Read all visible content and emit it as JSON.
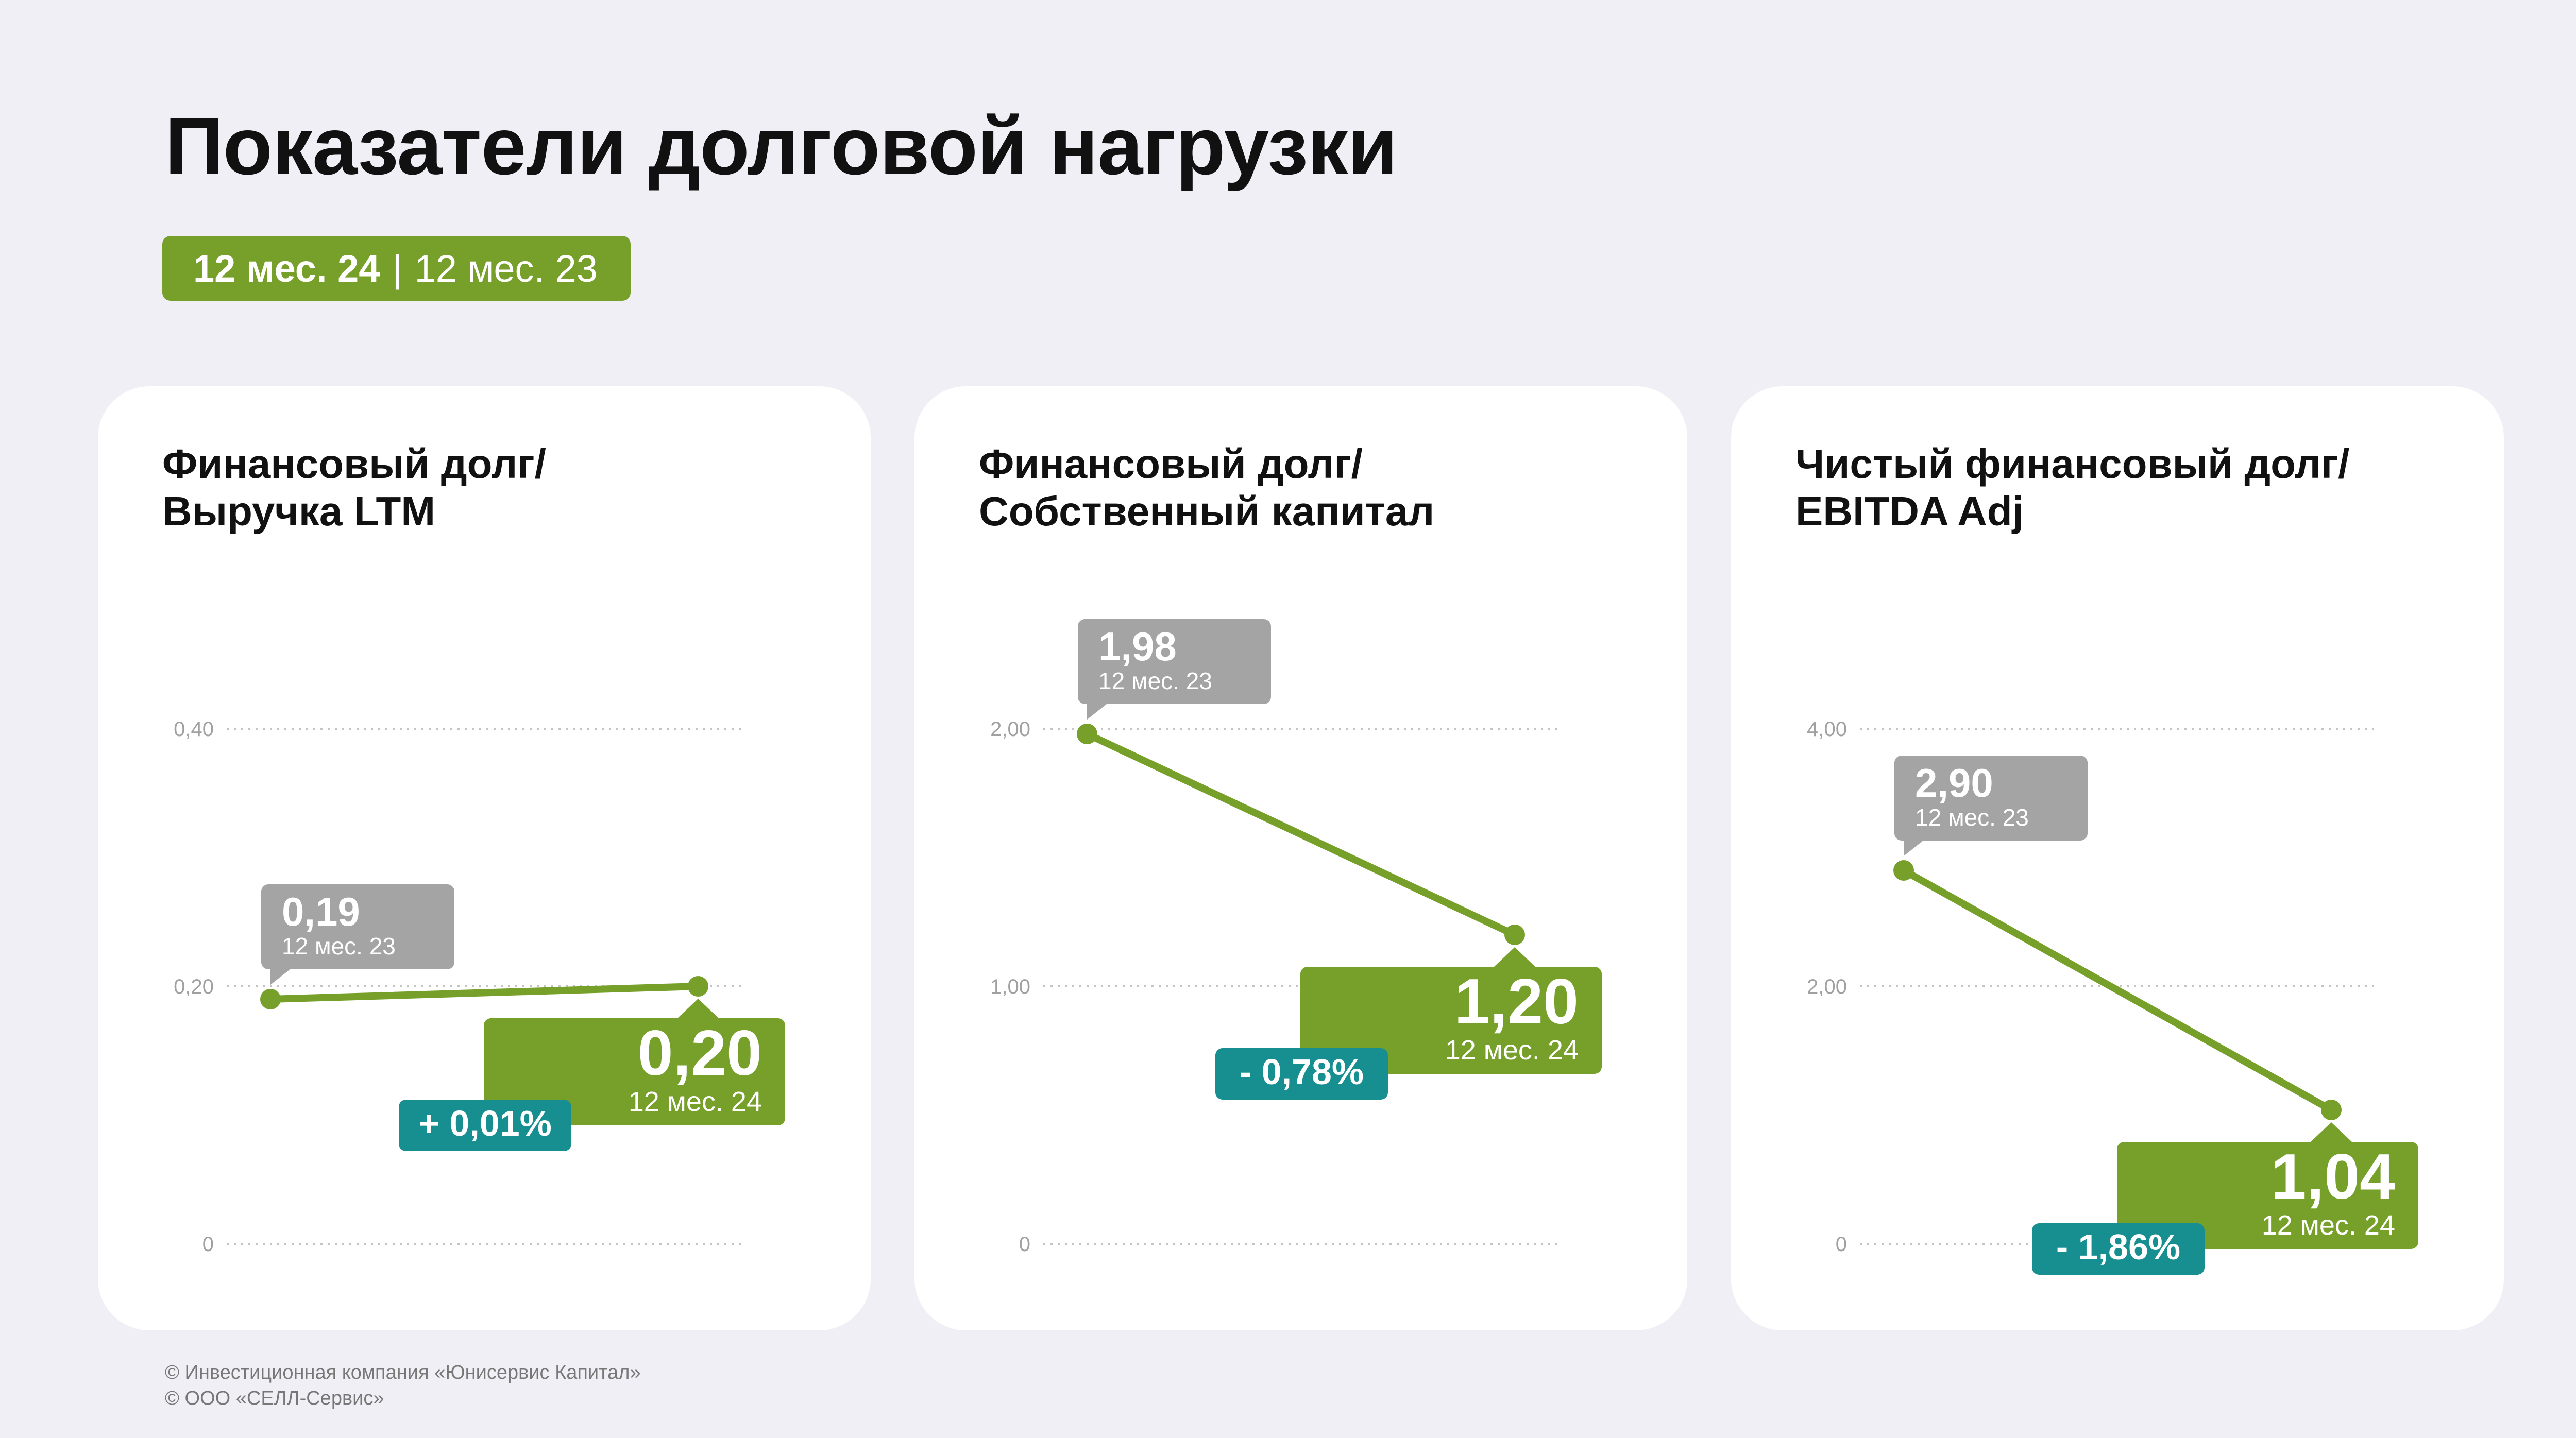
{
  "header": {
    "title": "Показатели долговой нагрузки",
    "period_current": "12 мес. 24",
    "period_separator": "|",
    "period_previous": "12 мес. 23"
  },
  "colors": {
    "current": "#77a02a",
    "previous": "#a4a4a4",
    "change": "#178f90",
    "grid": "#c4c4c4",
    "axis_text": "#a0a0a0"
  },
  "chart_data": [
    {
      "type": "line",
      "title_line1": "Финансовый долг/",
      "title_line2": "Выручка LTM",
      "yticks": [
        "0",
        "0,20",
        "0,40"
      ],
      "ylim": [
        0,
        0.4
      ],
      "grid": true,
      "points": [
        {
          "period": "12 мес. 23",
          "value": 0.19,
          "label": "0,19"
        },
        {
          "period": "12 мес. 24",
          "value": 0.2,
          "label": "0,20"
        }
      ],
      "change": "+ 0,01%"
    },
    {
      "type": "line",
      "title_line1": "Финансовый долг/",
      "title_line2": "Собственный капитал",
      "yticks": [
        "0",
        "1,00",
        "2,00"
      ],
      "ylim": [
        0,
        2
      ],
      "grid": true,
      "points": [
        {
          "period": "12 мес. 23",
          "value": 1.98,
          "label": "1,98"
        },
        {
          "period": "12 мес. 24",
          "value": 1.2,
          "label": "1,20"
        }
      ],
      "change": "- 0,78%"
    },
    {
      "type": "line",
      "title_line1": "Чистый финансовый долг/",
      "title_line2": "EBITDA Adj",
      "yticks": [
        "0",
        "2,00",
        "4,00"
      ],
      "ylim": [
        0,
        4
      ],
      "grid": true,
      "points": [
        {
          "period": "12 мес. 23",
          "value": 2.9,
          "label": "2,90"
        },
        {
          "period": "12 мес. 24",
          "value": 1.04,
          "label": "1,04"
        }
      ],
      "change": "- 1,86%"
    }
  ],
  "footer": {
    "line1": "© Инвестиционная компания «Юнисервис Капитал»",
    "line2": "© ООО «СЕЛЛ-Сервис»"
  }
}
